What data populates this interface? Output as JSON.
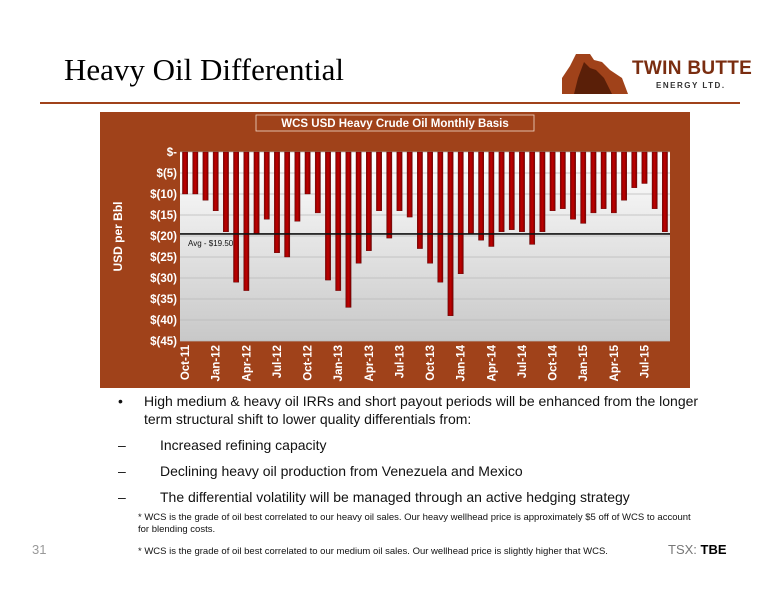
{
  "slide": {
    "title": "Heavy Oil Differential",
    "page_number": "31",
    "footer_prefix": "TSX:",
    "footer_ticker": "TBE"
  },
  "logo": {
    "name": "TWIN BUTTE",
    "sub": "ENERGY LTD.",
    "colors": {
      "outer": "#a0421a",
      "inner": "#5a1f08"
    }
  },
  "colors": {
    "panel": "#a0421a",
    "bar": "#c00000",
    "title_text": "#ffffff"
  },
  "chart_data": {
    "type": "bar",
    "title": "WCS USD Heavy Crude Oil Monthly Basis",
    "ylabel": "USD per Bbl",
    "xlabel": "",
    "ylim": [
      -45,
      0
    ],
    "yticks": [
      0,
      -5,
      -10,
      -15,
      -20,
      -25,
      -30,
      -35,
      -40,
      -45
    ],
    "ytick_labels": [
      "$-",
      "$(5)",
      "$(10)",
      "$(15)",
      "$(20)",
      "$(25)",
      "$(30)",
      "$(35)",
      "$(40)",
      "$(45)"
    ],
    "categories": [
      "Oct-11",
      "Nov-11",
      "Dec-11",
      "Jan-12",
      "Feb-12",
      "Mar-12",
      "Apr-12",
      "May-12",
      "Jun-12",
      "Jul-12",
      "Aug-12",
      "Sep-12",
      "Oct-12",
      "Nov-12",
      "Dec-12",
      "Jan-13",
      "Feb-13",
      "Mar-13",
      "Apr-13",
      "May-13",
      "Jun-13",
      "Jul-13",
      "Aug-13",
      "Sep-13",
      "Oct-13",
      "Nov-13",
      "Dec-13",
      "Jan-14",
      "Feb-14",
      "Mar-14",
      "Apr-14",
      "May-14",
      "Jun-14",
      "Jul-14",
      "Aug-14",
      "Sep-14",
      "Oct-14",
      "Nov-14",
      "Dec-14",
      "Jan-15",
      "Feb-15",
      "Mar-15",
      "Apr-15",
      "May-15",
      "Jun-15",
      "Jul-15",
      "Aug-15",
      "Sep-15"
    ],
    "x_tick_labels": [
      "Oct-11",
      "Jan-12",
      "Apr-12",
      "Jul-12",
      "Oct-12",
      "Jan-13",
      "Apr-13",
      "Jul-13",
      "Oct-13",
      "Jan-14",
      "Apr-14",
      "Jul-14",
      "Oct-14",
      "Jan-15",
      "Apr-15",
      "Jul-15"
    ],
    "values": [
      -10,
      -10,
      -11.5,
      -14,
      -19,
      -31,
      -33,
      -19.5,
      -16,
      -24,
      -25,
      -16.5,
      -10,
      -14.5,
      -30.5,
      -33,
      -37,
      -26.5,
      -23.5,
      -14,
      -20.5,
      -14,
      -15.5,
      -23,
      -26.5,
      -31,
      -39,
      -29,
      -19.5,
      -21,
      -22.5,
      -19,
      -18.5,
      -19,
      -22,
      -19,
      -14,
      -13.5,
      -16,
      -17,
      -14.5,
      -13.5,
      -14.5,
      -11.5,
      -8.5,
      -7.5,
      -13.5,
      -19
    ],
    "average": {
      "value": -19.5,
      "label": "Avg - $19.50"
    },
    "grid": true
  },
  "bullets": {
    "main": "High medium & heavy oil IRRs and short payout periods will be enhanced from the longer term structural shift to lower quality differentials from:",
    "subs": [
      "Increased refining capacity",
      "Declining heavy oil production from Venezuela and Mexico",
      "The differential volatility will be managed  through an active  hedging strategy"
    ],
    "note1": "* WCS is the grade of oil best correlated to our heavy oil sales. Our heavy wellhead price is approximately $5 off of WCS to account for blending costs.",
    "note2": "* WCS is the grade of oil best correlated to our medium oil sales. Our wellhead price is slightly higher that WCS."
  }
}
